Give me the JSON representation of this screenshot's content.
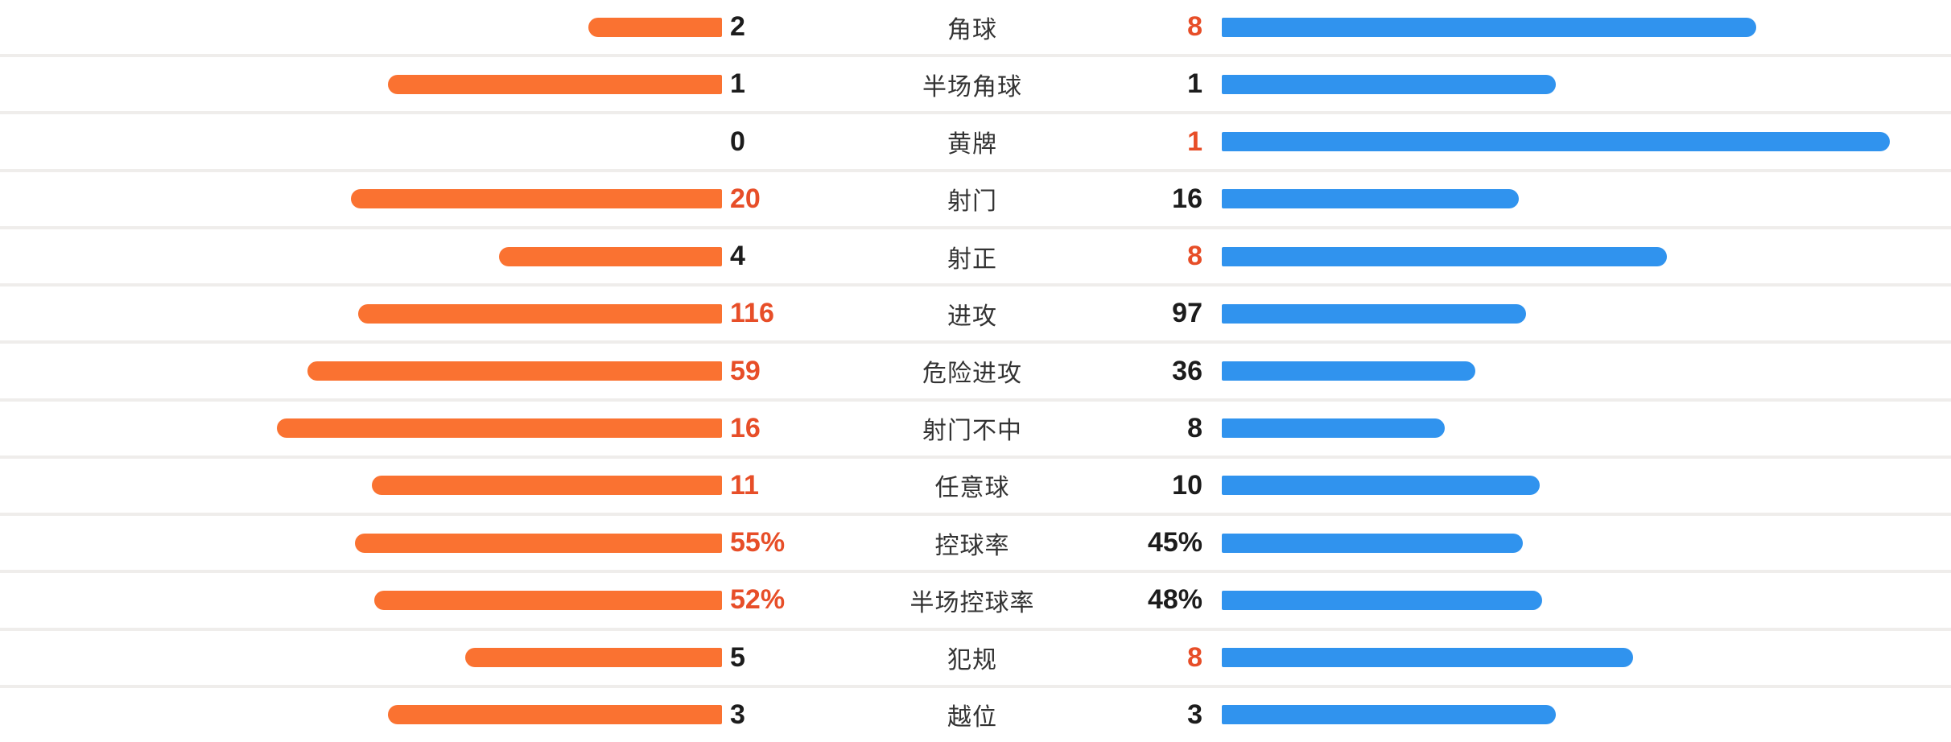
{
  "colors": {
    "home_bar": "#fa7231",
    "away_bar": "#3093ee",
    "highlight_value_text": "#e74e28",
    "normal_value_text": "#1c1c1c",
    "label_text": "#333333",
    "row_separator": "#efedeb",
    "background": "#ffffff"
  },
  "chart_data": {
    "type": "bar",
    "subtype": "paired-horizontal-comparison",
    "orientation": "horizontal",
    "grid": false,
    "legend": false,
    "bar_scaling": "bar length = value / (home value + away value) of the half-width; zero value renders no bar",
    "categories": [
      "角球",
      "半场角球",
      "黄牌",
      "射门",
      "射正",
      "进攻",
      "危险进攻",
      "射门不中",
      "任意球",
      "控球率",
      "半场控球率",
      "犯规",
      "越位"
    ],
    "series": [
      {
        "name": "home-orange",
        "side": "left",
        "color": "#fa7231",
        "values": [
          2,
          1,
          0,
          20,
          4,
          116,
          59,
          16,
          11,
          55,
          52,
          5,
          3
        ],
        "display": [
          "2",
          "1",
          "0",
          "20",
          "4",
          "116",
          "59",
          "16",
          "11",
          "55%",
          "52%",
          "5",
          "3"
        ],
        "highlighted": [
          false,
          false,
          false,
          true,
          false,
          true,
          true,
          true,
          true,
          true,
          true,
          false,
          false
        ]
      },
      {
        "name": "away-blue",
        "side": "right",
        "color": "#3093ee",
        "values": [
          8,
          1,
          1,
          16,
          8,
          97,
          36,
          8,
          10,
          45,
          48,
          8,
          3
        ],
        "display": [
          "8",
          "1",
          "1",
          "16",
          "8",
          "97",
          "36",
          "8",
          "10",
          "45%",
          "48%",
          "8",
          "3"
        ],
        "highlighted": [
          true,
          false,
          true,
          false,
          true,
          false,
          false,
          false,
          false,
          false,
          false,
          true,
          false
        ]
      }
    ]
  }
}
